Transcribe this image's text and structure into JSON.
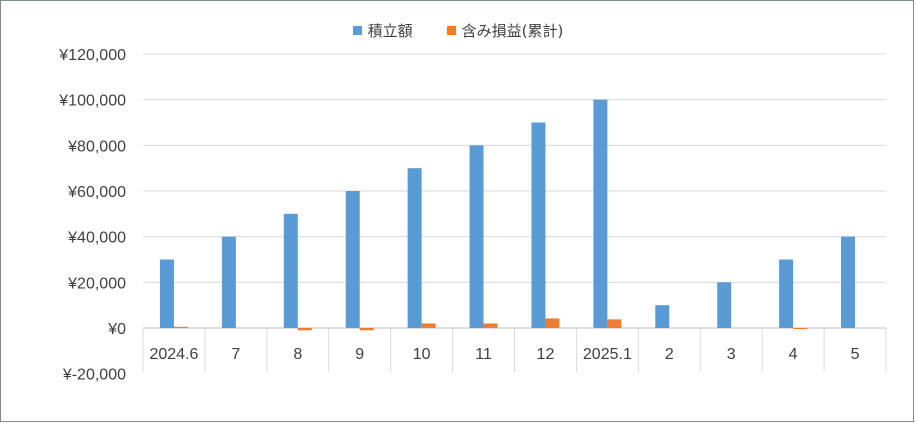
{
  "chart_data": {
    "type": "bar",
    "title": "",
    "xlabel": "",
    "ylabel": "",
    "categories": [
      "2024.6",
      "7",
      "8",
      "9",
      "10",
      "11",
      "12",
      "2025.1",
      "2",
      "3",
      "4",
      "5"
    ],
    "series": [
      {
        "name": "積立額",
        "color": "#5b9bd5",
        "values": [
          30000,
          40000,
          50000,
          60000,
          70000,
          80000,
          90000,
          100000,
          10000,
          20000,
          30000,
          40000
        ]
      },
      {
        "name": "含み損益(累計)",
        "color": "#ed7d31",
        "values": [
          500,
          0,
          -1000,
          -1000,
          2000,
          2000,
          4200,
          3800,
          0,
          0,
          -400,
          0
        ]
      }
    ],
    "ylim": [
      -20000,
      120000
    ],
    "yticks": [
      {
        "value": 120000,
        "label": "¥120,000",
        "color": "#404040"
      },
      {
        "value": 100000,
        "label": "¥100,000",
        "color": "#404040"
      },
      {
        "value": 80000,
        "label": "¥80,000",
        "color": "#404040"
      },
      {
        "value": 60000,
        "label": "¥60,000",
        "color": "#404040"
      },
      {
        "value": 40000,
        "label": "¥40,000",
        "color": "#404040"
      },
      {
        "value": 20000,
        "label": "¥20,000",
        "color": "#404040"
      },
      {
        "value": 0,
        "label": "¥0",
        "color": "#404040"
      },
      {
        "value": -20000,
        "label": "¥-20,000",
        "color": "#c00000"
      }
    ],
    "grid": true,
    "legend_position": "top"
  }
}
